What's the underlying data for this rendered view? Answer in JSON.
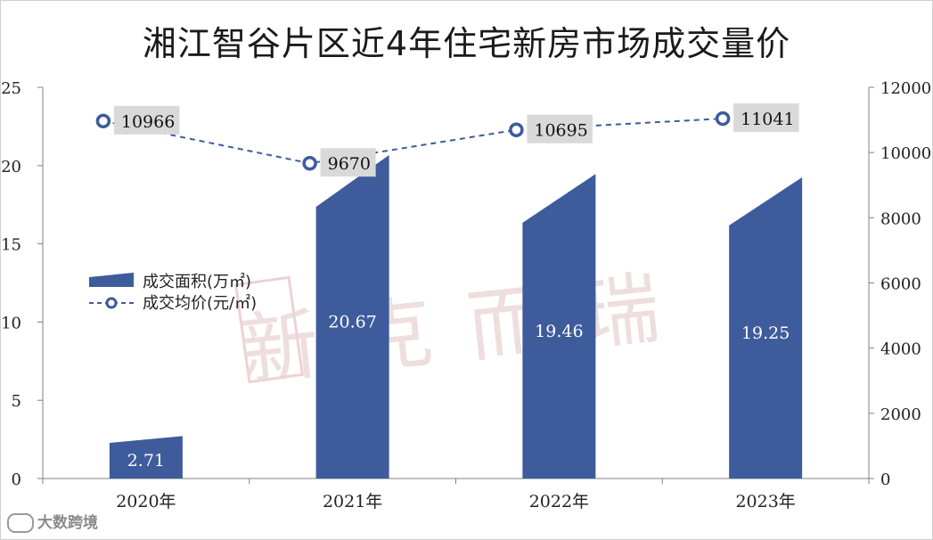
{
  "title": "湘江智谷片区近4年住宅新房市场成交量价",
  "watermark_text": "新克而瑞",
  "logo_text": "大数跨境",
  "colors": {
    "bar": "#3e5b9c",
    "line": "#3e5b9c",
    "label_box": "#d9d9d9",
    "axis": "#808080"
  },
  "chart_data": {
    "type": "bar",
    "categories": [
      "2020年",
      "2021年",
      "2022年",
      "2023年"
    ],
    "series": [
      {
        "name": "成交面积(万㎡)",
        "type": "bar",
        "axis": "left",
        "values": [
          2.71,
          20.67,
          19.46,
          19.25
        ],
        "labels": [
          "2.71",
          "20.67",
          "19.46",
          "19.25"
        ]
      },
      {
        "name": "成交均价(元/㎡)",
        "type": "line",
        "axis": "right",
        "values": [
          10966,
          9670,
          10695,
          11041
        ],
        "labels": [
          "10966",
          "9670",
          "10695",
          "11041"
        ]
      }
    ],
    "left_axis": {
      "ylim": [
        0,
        25
      ],
      "ticks": [
        "0",
        "5",
        "10",
        "15",
        "20",
        "25"
      ]
    },
    "right_axis": {
      "ylim": [
        0,
        12000
      ],
      "ticks": [
        "0",
        "2000",
        "4000",
        "6000",
        "8000",
        "10000",
        "12000"
      ]
    },
    "legend_position": "left-middle",
    "grid": false
  }
}
